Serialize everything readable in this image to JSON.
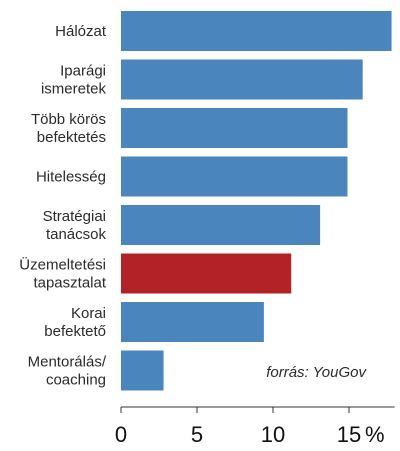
{
  "chart_data": {
    "type": "bar",
    "orientation": "horizontal",
    "categories": [
      "Hálózat",
      "Iparági ismeretek",
      "Több körös befektetés",
      "Hitelesség",
      "Stratégiai tanácsok",
      "Üzemeltetési tapasztalat",
      "Korai befektető",
      "Mentorálás/ coaching"
    ],
    "category_lines": [
      [
        "Hálózat"
      ],
      [
        "Iparági",
        "ismeretek"
      ],
      [
        "Több körös",
        "befektetés"
      ],
      [
        "Hitelesség"
      ],
      [
        "Stratégiai",
        "tanácsok"
      ],
      [
        "Üzemeltetési",
        "tapasztalat"
      ],
      [
        "Korai",
        "befektető"
      ],
      [
        "Mentorálás/",
        "coaching"
      ]
    ],
    "values": [
      17.8,
      15.9,
      14.9,
      14.9,
      13.1,
      11.2,
      9.4,
      2.8
    ],
    "highlight_index": 5,
    "colors": {
      "bar": "#4a86bd",
      "highlight": "#b22226",
      "axis": "#333333"
    },
    "xlim": [
      0,
      18
    ],
    "xticks": [
      0,
      5,
      10,
      15
    ],
    "tick_labels": [
      "0",
      "5",
      "10",
      "15"
    ],
    "unit": "%",
    "annotation": "forrás: YouGov"
  }
}
